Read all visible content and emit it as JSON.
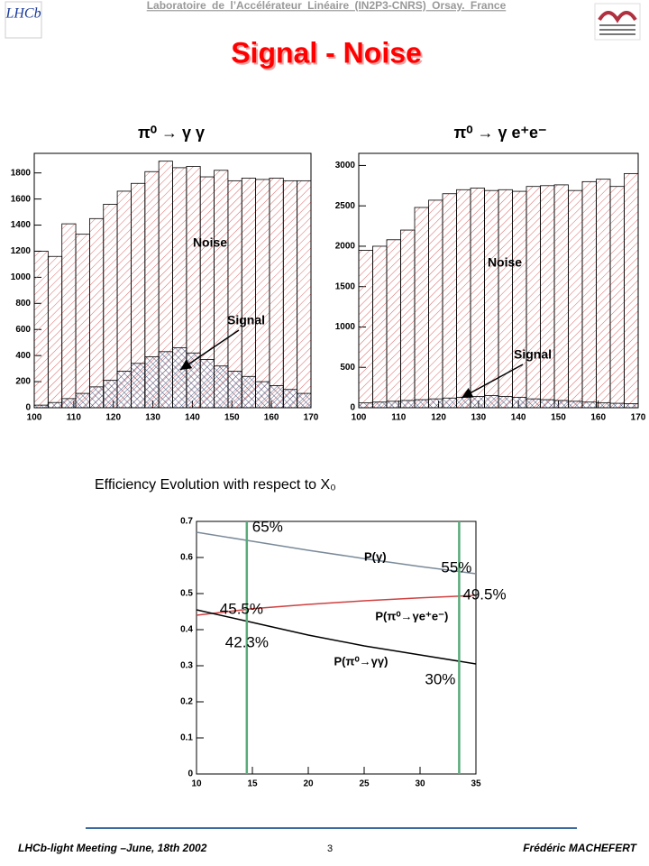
{
  "header": {
    "lab": "Laboratoire de l’Accélérateur Linéaire (IN2P3-CNRS) Orsay. France",
    "logo": "LHCb",
    "title": "Signal - Noise"
  },
  "chart_data": [
    {
      "type": "histogram",
      "title": "π⁰ → γ γ",
      "bins": [
        100,
        103.5,
        107,
        110.5,
        114,
        117.5,
        121,
        124.5,
        128,
        131.5,
        135,
        138.5,
        142,
        145.5,
        149,
        152.5,
        156,
        159.5,
        163,
        166.5,
        170
      ],
      "series": [
        {
          "name": "Noise",
          "color": "#e06666",
          "values": [
            1200,
            1160,
            1410,
            1330,
            1450,
            1560,
            1660,
            1720,
            1810,
            1890,
            1840,
            1850,
            1770,
            1820,
            1740,
            1760,
            1750,
            1760,
            1740,
            1740
          ]
        },
        {
          "name": "Signal",
          "color": "#2a3a6a",
          "values": [
            20,
            40,
            70,
            110,
            160,
            210,
            280,
            340,
            390,
            430,
            460,
            420,
            370,
            320,
            280,
            240,
            200,
            170,
            140,
            110
          ]
        }
      ],
      "xlim": [
        100,
        170
      ],
      "xticks": [
        100,
        110,
        120,
        130,
        140,
        150,
        160,
        170
      ],
      "ylim": [
        0,
        1950
      ],
      "yticks": [
        0,
        200,
        400,
        600,
        800,
        1000,
        1200,
        1400,
        1600,
        1800
      ]
    },
    {
      "type": "histogram",
      "title": "π⁰ → γ e⁺e⁻",
      "bins": [
        100,
        103.5,
        107,
        110.5,
        114,
        117.5,
        121,
        124.5,
        128,
        131.5,
        135,
        138.5,
        142,
        145.5,
        149,
        152.5,
        156,
        159.5,
        163,
        166.5,
        170
      ],
      "series": [
        {
          "name": "Noise",
          "color": "#e06666",
          "values": [
            1950,
            2000,
            2080,
            2200,
            2480,
            2570,
            2650,
            2700,
            2720,
            2690,
            2700,
            2680,
            2740,
            2750,
            2760,
            2690,
            2800,
            2830,
            2740,
            2900
          ]
        },
        {
          "name": "Signal",
          "color": "#2a3a6a",
          "values": [
            60,
            70,
            80,
            90,
            100,
            110,
            120,
            130,
            140,
            150,
            140,
            130,
            110,
            100,
            90,
            80,
            70,
            60,
            55,
            50
          ]
        }
      ],
      "xlim": [
        100,
        170
      ],
      "xticks": [
        100,
        110,
        120,
        130,
        140,
        150,
        160,
        170
      ],
      "ylim": [
        0,
        3150
      ],
      "yticks": [
        0,
        500,
        1000,
        1500,
        2000,
        2500,
        3000
      ]
    },
    {
      "type": "line",
      "title": "Efficiency Evolution with respect to X₀",
      "x": [
        10,
        15,
        20,
        25,
        30,
        35
      ],
      "series": [
        {
          "name": "P(γ)",
          "color": "#7a8a9a",
          "values": [
            0.67,
            0.645,
            0.62,
            0.597,
            0.575,
            0.555
          ]
        },
        {
          "name": "P(π⁰→γe⁺e⁻)",
          "color": "#d04040",
          "values": [
            0.44,
            0.458,
            0.47,
            0.48,
            0.488,
            0.495
          ]
        },
        {
          "name": "P(π⁰→γγ)",
          "color": "#000000",
          "values": [
            0.455,
            0.42,
            0.385,
            0.355,
            0.33,
            0.305
          ]
        }
      ],
      "markers": [
        {
          "x": 14.5,
          "color": "#5aaa7a",
          "values": [
            0.65,
            0.455,
            0.423
          ],
          "value_labels": [
            "65%",
            "45.5%",
            "42.3%"
          ]
        },
        {
          "x": 33.5,
          "color": "#5aaa7a",
          "values": [
            0.55,
            0.495,
            0.3
          ],
          "value_labels": [
            "55%",
            "49.5%",
            "30%"
          ]
        }
      ],
      "xlim": [
        10,
        35
      ],
      "xticks": [
        10,
        15,
        20,
        25,
        30,
        35
      ],
      "ylim": [
        0,
        0.7
      ],
      "yticks": [
        0,
        0.1,
        0.2,
        0.3,
        0.4,
        0.5,
        0.6,
        0.7
      ]
    }
  ],
  "footer": {
    "meeting": "LHCb-light Meeting –June, 18th 2002",
    "page": "3",
    "author": "Frédéric MACHEFERT"
  }
}
